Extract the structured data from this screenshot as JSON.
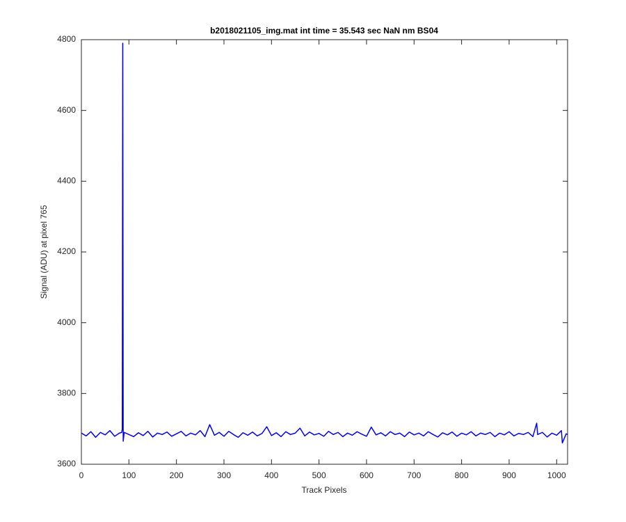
{
  "chart_data": {
    "type": "line",
    "title": "b2018021105_img.mat int time = 35.543 sec  NaN nm BS04",
    "x_label": "Track Pixels",
    "y_label": "Signal (ADU) at pixel 765",
    "x": [
      0,
      10,
      20,
      30,
      40,
      50,
      60,
      70,
      80,
      85,
      86,
      87,
      88,
      90,
      100,
      110,
      120,
      130,
      140,
      150,
      160,
      170,
      180,
      190,
      200,
      210,
      220,
      230,
      240,
      250,
      260,
      270,
      280,
      290,
      300,
      310,
      320,
      330,
      340,
      350,
      360,
      370,
      380,
      390,
      400,
      410,
      420,
      430,
      440,
      450,
      460,
      470,
      480,
      490,
      500,
      510,
      520,
      530,
      540,
      550,
      560,
      570,
      580,
      590,
      600,
      610,
      620,
      630,
      640,
      650,
      660,
      670,
      680,
      690,
      700,
      710,
      720,
      730,
      740,
      750,
      760,
      770,
      780,
      790,
      800,
      810,
      820,
      830,
      840,
      850,
      860,
      870,
      880,
      890,
      900,
      910,
      920,
      930,
      940,
      950,
      958,
      960,
      970,
      980,
      990,
      1000,
      1010,
      1012,
      1020,
      1023
    ],
    "series": [
      {
        "color": "#0000ff",
        "values": [
          3688,
          3680,
          3692,
          3676,
          3690,
          3683,
          3695,
          3679,
          3688,
          3690,
          3700,
          4790,
          3665,
          3690,
          3684,
          3678,
          3689,
          3681,
          3693,
          3677,
          3688,
          3684,
          3691,
          3679,
          3686,
          3693,
          3680,
          3688,
          3683,
          3695,
          3678,
          3712,
          3682,
          3690,
          3679,
          3693,
          3684,
          3676,
          3689,
          3682,
          3691,
          3680,
          3687,
          3706,
          3681,
          3689,
          3678,
          3692,
          3684,
          3688,
          3702,
          3680,
          3691,
          3683,
          3687,
          3679,
          3693,
          3684,
          3690,
          3678,
          3688,
          3682,
          3692,
          3685,
          3679,
          3705,
          3683,
          3689,
          3680,
          3692,
          3684,
          3688,
          3678,
          3691,
          3683,
          3688,
          3680,
          3692,
          3684,
          3677,
          3689,
          3683,
          3691,
          3679,
          3688,
          3683,
          3692,
          3680,
          3688,
          3684,
          3690,
          3678,
          3688,
          3683,
          3692,
          3680,
          3687,
          3684,
          3690,
          3678,
          3716,
          3684,
          3690,
          3677,
          3688,
          3682,
          3695,
          3660,
          3686,
          3684
        ]
      }
    ],
    "xlim": [
      0,
      1023
    ],
    "ylim": [
      3600,
      4800
    ],
    "xticks": [
      0,
      100,
      200,
      300,
      400,
      500,
      600,
      700,
      800,
      900,
      1000
    ],
    "yticks": [
      3600,
      3800,
      4000,
      4200,
      4400,
      4600,
      4800
    ],
    "box": true
  }
}
